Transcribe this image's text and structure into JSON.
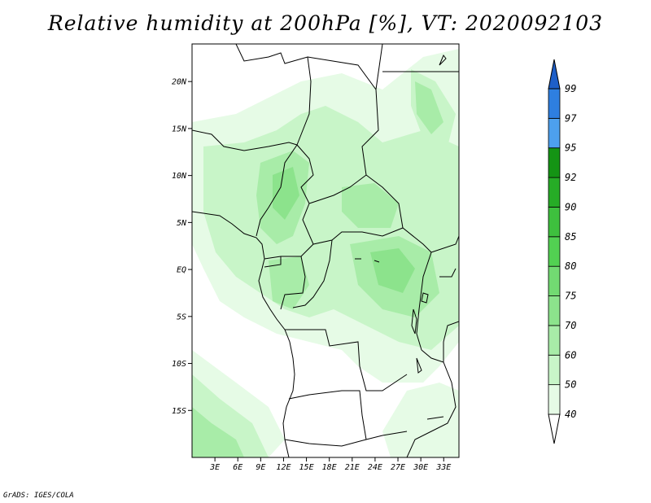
{
  "title": "Relative humidity at 200hPa [%], VT: 2020092103",
  "credit": "GrADS: IGES/COLA",
  "map": {
    "lon_range": [
      0,
      35
    ],
    "lat_range": [
      -20,
      24
    ],
    "lat_ticks": [
      {
        "value": 20,
        "label": "20N"
      },
      {
        "value": 15,
        "label": "15N"
      },
      {
        "value": 10,
        "label": "10N"
      },
      {
        "value": 5,
        "label": "5N"
      },
      {
        "value": 0,
        "label": "EQ"
      },
      {
        "value": -5,
        "label": "5S"
      },
      {
        "value": -10,
        "label": "10S"
      },
      {
        "value": -15,
        "label": "15S"
      }
    ],
    "lon_ticks": [
      {
        "value": 3,
        "label": "3E"
      },
      {
        "value": 6,
        "label": "6E"
      },
      {
        "value": 9,
        "label": "9E"
      },
      {
        "value": 12,
        "label": "12E"
      },
      {
        "value": 15,
        "label": "15E"
      },
      {
        "value": 18,
        "label": "18E"
      },
      {
        "value": 21,
        "label": "21E"
      },
      {
        "value": 24,
        "label": "24E"
      },
      {
        "value": 27,
        "label": "27E"
      },
      {
        "value": 30,
        "label": "30E"
      },
      {
        "value": 33,
        "label": "33E"
      }
    ]
  },
  "colorbar": {
    "levels": [
      {
        "label": "40",
        "color": "#e6fbe6"
      },
      {
        "label": "50",
        "color": "#c8f5c8"
      },
      {
        "label": "60",
        "color": "#a8eca8"
      },
      {
        "label": "70",
        "color": "#8ce38c"
      },
      {
        "label": "75",
        "color": "#72da72"
      },
      {
        "label": "80",
        "color": "#52d152"
      },
      {
        "label": "85",
        "color": "#3ec03e"
      },
      {
        "label": "90",
        "color": "#26ac26"
      },
      {
        "label": "92",
        "color": "#149414"
      },
      {
        "label": "95",
        "color": "#4da0ee"
      },
      {
        "label": "97",
        "color": "#2e7fe0"
      },
      {
        "label": "99",
        "color": "#1e5fc8"
      }
    ],
    "low_color": "#ffffff"
  }
}
